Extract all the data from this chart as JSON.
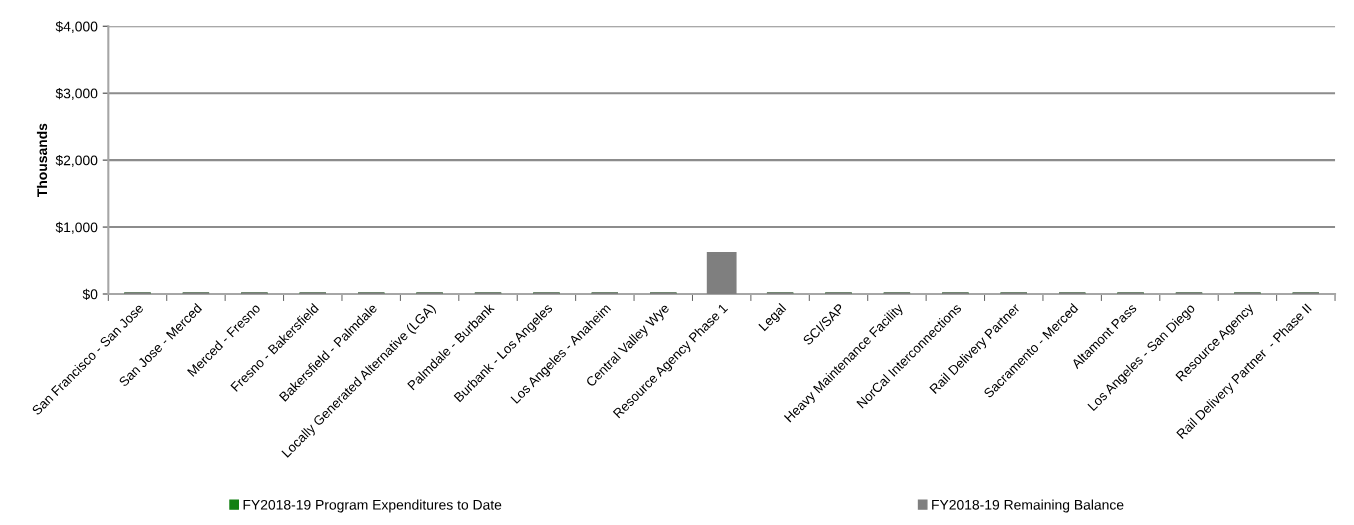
{
  "chart_data": {
    "type": "bar",
    "stacked": true,
    "categories": [
      "San Francisco - San Jose",
      "San Jose - Merced",
      "Merced - Fresno",
      "Fresno - Bakersfield",
      "Bakersfield - Palmdale",
      "Locally Generated Alternative (LGA)",
      "Palmdale - Burbank",
      "Burbank - Los Angeles",
      "Los Angeles - Anaheim",
      "Central Valley Wye",
      "Resource Agency Phase 1",
      "Legal",
      "SCI/SAP",
      "Heavy Maintenance Facility",
      "NorCal Interconnections",
      "Rail Delivery Partner",
      "Sacramento - Merced",
      "Altamont Pass",
      "Los Angeles - San Diego",
      "Resource Agency",
      "Rail Delivery Partner  - Phase II"
    ],
    "series": [
      {
        "name": "FY2018-19 Program Expenditures to Date",
        "color": "#128012",
        "values": [
          0,
          0,
          0,
          0,
          0,
          0,
          0,
          0,
          0,
          0,
          0,
          0,
          0,
          0,
          0,
          0,
          0,
          0,
          0,
          0,
          0
        ]
      },
      {
        "name": "FY2018-19 Remaining Balance",
        "color": "#7f7f7f",
        "values": [
          0,
          0,
          0,
          0,
          0,
          0,
          0,
          0,
          0,
          0,
          600,
          0,
          0,
          0,
          0,
          0,
          0,
          0,
          0,
          0,
          0
        ]
      }
    ],
    "ylabel": "Thousands",
    "ylim": [
      0,
      4000
    ],
    "yticks": [
      {
        "value": 0,
        "label": "$0"
      },
      {
        "value": 1000,
        "label": "$1,000"
      },
      {
        "value": 2000,
        "label": "$2,000"
      },
      {
        "value": 3000,
        "label": "$3,000"
      },
      {
        "value": 4000,
        "label": "$4,000"
      }
    ],
    "grid": "y",
    "legend": "bottom"
  }
}
